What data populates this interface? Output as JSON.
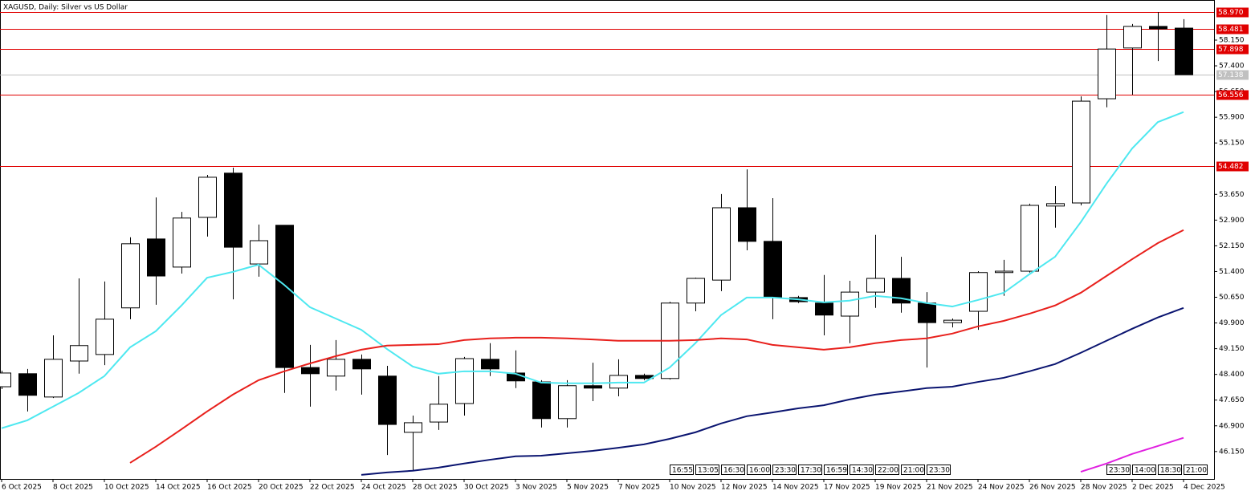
{
  "chart_data": {
    "type": "candlestick",
    "title": "XAGUSD, Daily:  Silver vs US Dollar",
    "categories": [
      "6 Oct 2025",
      null,
      "8 Oct 2025",
      null,
      "10 Oct 2025",
      null,
      "14 Oct 2025",
      null,
      "16 Oct 2025",
      null,
      "20 Oct 2025",
      null,
      "22 Oct 2025",
      null,
      "24 Oct 2025",
      null,
      "28 Oct 2025",
      null,
      "30 Oct 2025",
      null,
      "3 Nov 2025",
      null,
      "5 Nov 2025",
      null,
      "7 Nov 2025",
      null,
      "10 Nov 2025",
      null,
      "12 Nov 2025",
      null,
      "14 Nov 2025",
      null,
      "17 Nov 2025",
      null,
      "19 Nov 2025",
      null,
      "21 Nov 2025",
      null,
      "24 Nov 2025",
      null,
      "26 Nov 2025",
      null,
      "28 Nov 2025",
      null,
      "2 Dec 2025",
      null,
      "4 Dec 2025"
    ],
    "open": [
      48.04,
      48.42,
      47.74,
      48.79,
      48.98,
      50.34,
      52.35,
      51.53,
      52.98,
      54.27,
      51.62,
      52.75,
      48.6,
      48.35,
      48.84,
      48.35,
      46.71,
      47.01,
      47.55,
      48.84,
      48.44,
      48.18,
      47.11,
      48.07,
      48.0,
      48.37,
      48.28,
      50.48,
      51.15,
      53.26,
      52.28,
      50.64,
      50.48,
      50.1,
      50.8,
      51.2,
      50.48,
      49.91,
      50.24,
      51.37,
      51.41,
      53.31,
      53.4,
      56.44,
      57.92,
      58.55,
      58.5
    ],
    "high": [
      48.51,
      48.56,
      49.54,
      51.2,
      51.11,
      52.4,
      53.56,
      53.14,
      54.22,
      54.43,
      52.77,
      52.75,
      49.26,
      49.4,
      48.98,
      48.65,
      47.2,
      48.35,
      48.91,
      49.31,
      49.1,
      48.23,
      48.23,
      48.74,
      48.84,
      48.42,
      50.52,
      51.22,
      53.66,
      54.38,
      53.54,
      50.69,
      51.3,
      51.13,
      52.47,
      51.83,
      50.8,
      50.03,
      51.41,
      51.74,
      53.38,
      53.89,
      56.51,
      58.88,
      58.62,
      58.97,
      58.76
    ],
    "low": [
      47.97,
      47.32,
      47.71,
      48.42,
      48.67,
      50.01,
      50.43,
      51.34,
      52.42,
      50.59,
      51.25,
      47.86,
      47.46,
      47.93,
      47.81,
      46.05,
      45.59,
      46.78,
      47.2,
      48.35,
      48.0,
      46.85,
      46.85,
      47.62,
      47.76,
      48.23,
      48.25,
      50.24,
      50.83,
      52.02,
      50.01,
      50.48,
      49.54,
      49.31,
      50.34,
      50.2,
      48.6,
      49.77,
      49.7,
      50.69,
      51.37,
      52.68,
      53.33,
      56.19,
      56.56,
      57.54,
      57.14
    ],
    "close": [
      48.44,
      47.79,
      48.84,
      49.24,
      50.01,
      52.21,
      51.27,
      52.96,
      54.15,
      52.11,
      52.3,
      48.6,
      48.42,
      48.84,
      48.56,
      46.94,
      46.99,
      47.53,
      48.86,
      48.56,
      48.21,
      47.11,
      48.07,
      48.0,
      48.37,
      48.28,
      50.48,
      51.2,
      53.26,
      52.28,
      50.64,
      50.52,
      50.13,
      50.8,
      51.2,
      50.48,
      49.91,
      49.98,
      51.37,
      51.41,
      53.33,
      53.38,
      56.37,
      57.89,
      58.55,
      58.48,
      57.14
    ],
    "up_color": "#ffffff",
    "down_color": "#000000",
    "lines": [
      {
        "color": "#4ee8f0",
        "values": [
          46.83,
          47.06,
          47.46,
          47.86,
          48.35,
          49.19,
          49.66,
          50.41,
          51.22,
          51.39,
          51.6,
          51.01,
          50.36,
          50.03,
          49.7,
          49.14,
          48.63,
          48.42,
          48.49,
          48.49,
          48.42,
          48.16,
          48.14,
          48.14,
          48.16,
          48.16,
          48.6,
          49.31,
          50.13,
          50.64,
          50.64,
          50.59,
          50.5,
          50.55,
          50.69,
          50.62,
          50.48,
          50.38,
          50.57,
          50.78,
          51.32,
          51.83,
          52.84,
          53.96,
          54.99,
          55.76,
          56.05
        ]
      },
      {
        "color": "#e8201c",
        "values": [
          null,
          null,
          null,
          null,
          null,
          45.82,
          46.29,
          46.8,
          47.32,
          47.81,
          48.23,
          48.49,
          48.72,
          48.93,
          49.12,
          49.24,
          49.26,
          49.28,
          49.4,
          49.45,
          49.47,
          49.47,
          49.45,
          49.42,
          49.38,
          49.38,
          49.38,
          49.4,
          49.45,
          49.42,
          49.26,
          49.19,
          49.12,
          49.19,
          49.31,
          49.4,
          49.45,
          49.59,
          49.8,
          49.96,
          50.17,
          50.41,
          50.78,
          51.27,
          51.76,
          52.23,
          52.61
        ]
      },
      {
        "color": "#0a1470",
        "values": [
          null,
          null,
          null,
          null,
          null,
          null,
          null,
          null,
          null,
          null,
          null,
          null,
          null,
          null,
          45.47,
          45.54,
          45.59,
          45.68,
          45.8,
          45.91,
          46.01,
          46.03,
          46.1,
          46.17,
          46.26,
          46.36,
          46.52,
          46.71,
          46.97,
          47.18,
          47.29,
          47.41,
          47.5,
          47.67,
          47.81,
          47.9,
          48.0,
          48.04,
          48.18,
          48.3,
          48.49,
          48.7,
          49.03,
          49.38,
          49.73,
          50.06,
          50.34
        ]
      },
      {
        "color": "#e020e0",
        "values": [
          null,
          null,
          null,
          null,
          null,
          null,
          null,
          null,
          null,
          null,
          null,
          null,
          null,
          null,
          null,
          null,
          null,
          null,
          null,
          null,
          null,
          null,
          null,
          null,
          null,
          null,
          null,
          null,
          null,
          null,
          null,
          null,
          null,
          null,
          null,
          null,
          null,
          null,
          null,
          null,
          null,
          null,
          45.56,
          45.8,
          46.08,
          46.31,
          46.55
        ]
      }
    ],
    "ylim": [
      45.35,
      59.32
    ],
    "yticks": [
      {
        "value": 46.15,
        "label": "46.150"
      },
      {
        "value": 46.9,
        "label": "46.900"
      },
      {
        "value": 47.65,
        "label": "47.650"
      },
      {
        "value": 48.4,
        "label": "48.400"
      },
      {
        "value": 49.15,
        "label": "49.150"
      },
      {
        "value": 49.9,
        "label": "49.900"
      },
      {
        "value": 50.65,
        "label": "50.650"
      },
      {
        "value": 51.4,
        "label": "51.400"
      },
      {
        "value": 52.15,
        "label": "52.150"
      },
      {
        "value": 52.9,
        "label": "52.900"
      },
      {
        "value": 53.65,
        "label": "53.650"
      },
      {
        "value": 55.15,
        "label": "55.150"
      },
      {
        "value": 55.9,
        "label": "55.900"
      },
      {
        "value": 56.65,
        "label": "56.650"
      },
      {
        "value": 57.4,
        "label": "57.400"
      },
      {
        "value": 58.15,
        "label": "58.150"
      }
    ],
    "levels": [
      {
        "value": 58.97,
        "label": "58.970",
        "color": "#e00000"
      },
      {
        "value": 58.481,
        "label": "58.481",
        "color": "#e00000"
      },
      {
        "value": 57.898,
        "label": "57.898",
        "color": "#e00000"
      },
      {
        "value": 57.138,
        "label": "57.138",
        "color": "#c0c0c0"
      },
      {
        "value": 56.556,
        "label": "56.556",
        "color": "#e00000"
      },
      {
        "value": 54.482,
        "label": "54.482",
        "color": "#e00000"
      }
    ],
    "bar_times": [
      null,
      null,
      null,
      null,
      null,
      null,
      null,
      null,
      null,
      null,
      null,
      null,
      null,
      null,
      null,
      null,
      null,
      null,
      null,
      null,
      null,
      null,
      null,
      null,
      null,
      null,
      "16:55",
      "13:05",
      "16:30",
      "16:00",
      "23:30",
      "17:30",
      "16:59",
      "14:30",
      "22:00",
      "21:00",
      "23:30",
      null,
      null,
      null,
      null,
      null,
      null,
      "23:30",
      "14:00",
      "18:30",
      "21:00"
    ]
  }
}
